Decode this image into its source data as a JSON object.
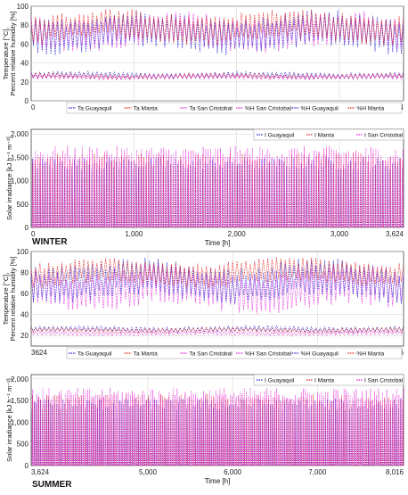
{
  "colors": {
    "guayaquil": "#2b2bd6",
    "manta": "#e02020",
    "san_cristobal": "#e025d8"
  },
  "chart_data": [
    {
      "type": "line",
      "id": "winter-temp-humidity",
      "ylabel": "Temperature [°C],\nPercent relative humidity  [%]",
      "xlabel": "",
      "ylim": [
        0,
        100
      ],
      "yticks": [
        "0",
        "20",
        "40",
        "60",
        "80",
        "100"
      ],
      "xlim": [
        0,
        3624
      ],
      "xticks": [
        0,
        1000,
        2000,
        3000,
        3624
      ],
      "xtick_labels": [
        "0",
        "1,000",
        "2,000",
        "3,000",
        "3624"
      ],
      "grid": true,
      "legend_position": "bottom",
      "series": [
        {
          "name": "Ta Guayaquil",
          "kind": "ta",
          "city": "guayaquil",
          "mean": 27,
          "amp": 3.5,
          "style": "dotted"
        },
        {
          "name": "Ta Manta",
          "kind": "ta",
          "city": "manta",
          "mean": 26,
          "amp": 3,
          "style": "dotted"
        },
        {
          "name": "Ta San Cristobal",
          "kind": "ta",
          "city": "san_cristobal",
          "mean": 25,
          "amp": 2.5,
          "style": "dotted"
        },
        {
          "name": "%H San Cristobal",
          "kind": "rh",
          "city": "san_cristobal",
          "mean": 73,
          "amp": 18,
          "style": "dotted"
        },
        {
          "name": "%H Guayaquil",
          "kind": "rh",
          "city": "guayaquil",
          "mean": 72,
          "amp": 20,
          "style": "dotted"
        },
        {
          "name": "%H Manta",
          "kind": "rh",
          "city": "manta",
          "mean": 78,
          "amp": 16,
          "style": "dotted"
        }
      ]
    },
    {
      "type": "line",
      "id": "winter-irradiance",
      "ylabel": "Solar irradiance [kJ h⁻¹ m⁻²]",
      "xlabel": "Time [h]",
      "ylim": [
        0,
        2100
      ],
      "yticks": [
        "0",
        "500",
        "1,000",
        "1,500",
        "2,000"
      ],
      "xlim": [
        0,
        3624
      ],
      "xticks": [
        0,
        1000,
        2000,
        3000,
        3624
      ],
      "xtick_labels": [
        "0",
        "1,000",
        "2,000",
        "3,000",
        "3,624"
      ],
      "grid": true,
      "legend_position": "top-right",
      "series": [
        {
          "name": "I Guayaquil",
          "kind": "irr",
          "city": "guayaquil",
          "peak": 1500
        },
        {
          "name": "I Manta",
          "kind": "irr",
          "city": "manta",
          "peak": 1600
        },
        {
          "name": "I San Cristobal",
          "kind": "irr",
          "city": "san_cristobal",
          "peak": 1750
        }
      ]
    },
    {
      "type": "line",
      "id": "summer-temp-humidity",
      "ylabel": "Temperature [°C],\nPercent relative humidity  [%]",
      "xlabel": "",
      "ylim": [
        10,
        100
      ],
      "yticks": [
        "20",
        "40",
        "60",
        "80",
        "100"
      ],
      "ytick_values": [
        20,
        40,
        60,
        80,
        100
      ],
      "xlim": [
        3624,
        8016
      ],
      "xticks": [
        3624,
        5000,
        6000,
        7000,
        8016
      ],
      "xtick_labels": [
        "3624",
        "5,000",
        "6,000",
        "7,000",
        "8,016"
      ],
      "grid": true,
      "legend_position": "bottom",
      "series": [
        {
          "name": "Ta Guayaquil",
          "kind": "ta",
          "city": "guayaquil",
          "mean": 26,
          "amp": 3,
          "style": "dotted"
        },
        {
          "name": "Ta Manta",
          "kind": "ta",
          "city": "manta",
          "mean": 25,
          "amp": 2.5,
          "style": "dotted"
        },
        {
          "name": "Ta San Cristobal",
          "kind": "ta",
          "city": "san_cristobal",
          "mean": 22,
          "amp": 2,
          "style": "dotted"
        },
        {
          "name": "%H San Cristobal",
          "kind": "rh",
          "city": "san_cristobal",
          "mean": 65,
          "amp": 20,
          "style": "dotted"
        },
        {
          "name": "%H Guayaquil",
          "kind": "rh",
          "city": "guayaquil",
          "mean": 72,
          "amp": 18,
          "style": "dotted"
        },
        {
          "name": "%H Manta",
          "kind": "rh",
          "city": "manta",
          "mean": 80,
          "amp": 12,
          "style": "dotted"
        }
      ]
    },
    {
      "type": "line",
      "id": "summer-irradiance",
      "ylabel": "Solar irradiance [kJ h⁻¹ m⁻²]",
      "xlabel": "Time [h]",
      "ylim": [
        0,
        2100
      ],
      "yticks": [
        "0",
        "500",
        "1,000",
        "1,500",
        "2,000"
      ],
      "xlim": [
        3624,
        8016
      ],
      "xticks": [
        3624,
        5000,
        6000,
        7000,
        8016
      ],
      "xtick_labels": [
        "3,624",
        "5,000",
        "6,000",
        "7,000",
        "8,016"
      ],
      "grid": true,
      "legend_position": "top-right",
      "series": [
        {
          "name": "I Guayaquil",
          "kind": "irr",
          "city": "guayaquil",
          "peak": 1550
        },
        {
          "name": "I Manta",
          "kind": "irr",
          "city": "manta",
          "peak": 1650
        },
        {
          "name": "I San Cristobal",
          "kind": "irr",
          "city": "san_cristobal",
          "peak": 1800
        }
      ]
    }
  ],
  "labels": {
    "winter": "WINTER",
    "summer": "SUMMER"
  }
}
